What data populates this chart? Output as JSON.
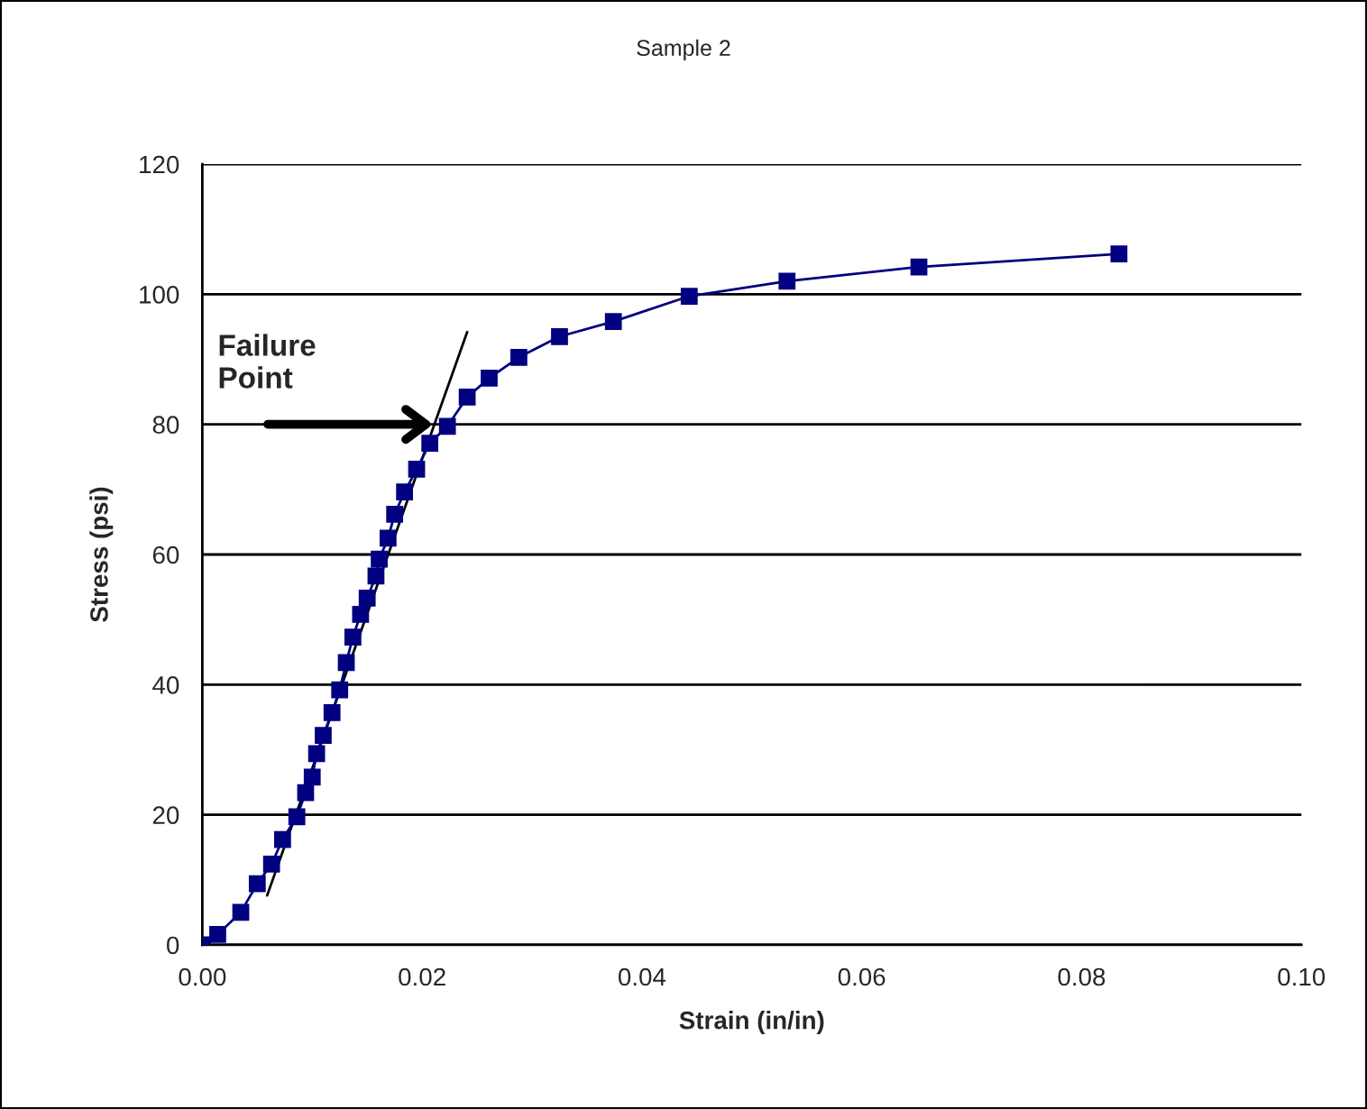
{
  "chart_data": {
    "type": "line",
    "title": "Sample 2",
    "xlabel": "Strain (in/in)",
    "ylabel": "Stress (psi)",
    "series": [
      {
        "color": "#000080",
        "marker": "square",
        "line_style": "solid",
        "x": [
          0,
          0.0014,
          0.0035,
          0.005,
          0.0063,
          0.0073,
          0.0086,
          0.0094,
          0.01,
          0.0104,
          0.011,
          0.0118,
          0.0125,
          0.0131,
          0.0137,
          0.0144,
          0.015,
          0.0158,
          0.0161,
          0.0169,
          0.0175,
          0.0184,
          0.0195,
          0.0207,
          0.0223,
          0.0241,
          0.0261,
          0.0288,
          0.0325,
          0.0374,
          0.0443,
          0.0532,
          0.0652,
          0.0834
        ],
        "values": [
          0,
          1.6,
          5.0,
          9.4,
          12.4,
          16.2,
          19.7,
          23.4,
          25.8,
          29.4,
          32.2,
          35.7,
          39.2,
          43.4,
          47.3,
          50.8,
          53.3,
          56.7,
          59.3,
          62.5,
          66.2,
          69.6,
          73.1,
          77.1,
          79.7,
          84.2,
          87.1,
          90.3,
          93.5,
          95.8,
          99.7,
          102.0,
          104.2,
          106.2
        ]
      },
      {
        "color": "#000000",
        "marker": "none",
        "line_style": "solid",
        "x": [
          0.0059,
          0.0241
        ],
        "values": [
          7.6,
          94.2
        ]
      }
    ],
    "annotations": [
      {
        "text": "Failure\nPoint",
        "x": 0.021,
        "y": 80
      }
    ],
    "xlim": [
      0,
      0.1
    ],
    "ylim": [
      0,
      120
    ],
    "xticks": [
      {
        "value": 0,
        "label": "0.00"
      },
      {
        "value": 0.02,
        "label": "0.02"
      },
      {
        "value": 0.04,
        "label": "0.04"
      },
      {
        "value": 0.06,
        "label": "0.06"
      },
      {
        "value": 0.08,
        "label": "0.08"
      },
      {
        "value": 0.1,
        "label": "0.10"
      }
    ],
    "yticks": [
      0,
      20,
      40,
      60,
      80,
      100,
      120
    ],
    "grid": "y",
    "legend": false
  }
}
